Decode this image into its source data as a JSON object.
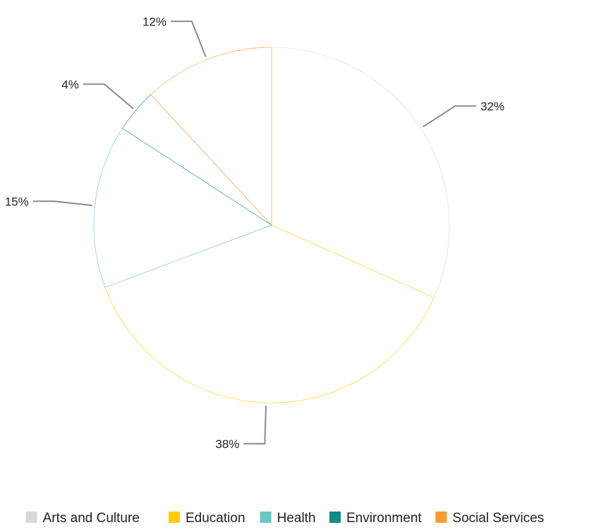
{
  "chart_data": {
    "type": "pie",
    "title": "",
    "categories": [
      "Arts and Culture",
      "Education",
      "Health",
      "Environment",
      "Social Services"
    ],
    "values": [
      32,
      38,
      15,
      4,
      12
    ],
    "labels": [
      "32%",
      "38%",
      "15%",
      "4%",
      "12%"
    ],
    "colors": [
      "#d9d9d9",
      "#ffcc00",
      "#66c8c4",
      "#0c8f82",
      "#ff9a2e"
    ],
    "legend_position": "bottom",
    "start_angle_deg": 0,
    "direction": "clockwise"
  }
}
